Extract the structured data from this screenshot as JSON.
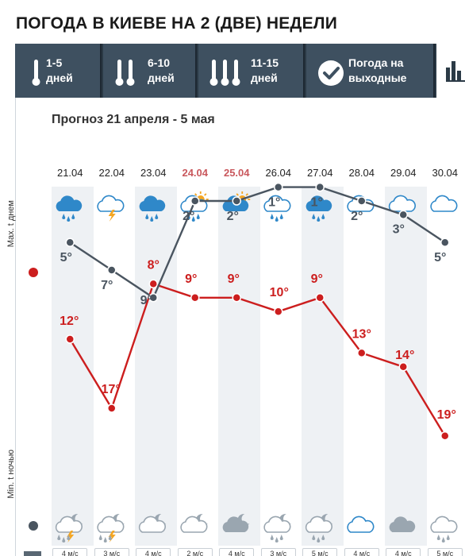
{
  "page_title": "ПОГОДА В КИЕВЕ НА 2 (ДВЕ) НЕДЕЛИ",
  "tabs": [
    {
      "id": "1-5",
      "line1": "1-5",
      "line2": "дней",
      "icon": "thermometer-1-icon",
      "active": false
    },
    {
      "id": "6-10",
      "line1": "6-10",
      "line2": "дней",
      "icon": "thermometer-2-icon",
      "active": false
    },
    {
      "id": "11-15",
      "line1": "11-15",
      "line2": "дней",
      "icon": "thermometer-3-icon",
      "active": false
    },
    {
      "id": "weekend",
      "line1": "Погода на",
      "line2": "выходные",
      "icon": "checkmark-circle-icon",
      "active": false
    },
    {
      "id": "chart",
      "line1": "",
      "line2": "",
      "icon": "bar-chart-icon",
      "active": true
    }
  ],
  "forecast_title": "Прогноз 21 апреля - 5 мая",
  "axis": {
    "max_label": "Max. t днем",
    "min_label": "Min. t ночью",
    "max_color": "#cc1e1e",
    "min_color": "#4a5560"
  },
  "chart_data": {
    "type": "line",
    "x": [
      "21.04",
      "22.04",
      "23.04",
      "24.04",
      "25.04",
      "26.04",
      "27.04",
      "28.04",
      "29.04",
      "30.04"
    ],
    "weekend": [
      false,
      false,
      false,
      true,
      true,
      false,
      false,
      false,
      false,
      false
    ],
    "series": [
      {
        "name": "Max. t днем",
        "values": [
          12,
          17,
          8,
          9,
          9,
          10,
          9,
          13,
          14,
          19
        ],
        "labels": [
          "12°",
          "17°",
          "8°",
          "9°",
          "9°",
          "10°",
          "9°",
          "13°",
          "14°",
          "19°"
        ],
        "color": "#cc1e1e"
      },
      {
        "name": "Min. t ночью",
        "values": [
          5,
          7,
          9,
          2,
          2,
          1,
          1,
          2,
          3,
          5
        ],
        "labels": [
          "5°",
          "7°",
          "9°",
          "2°",
          "2°",
          "1°",
          "1°",
          "2°",
          "3°",
          "5°"
        ],
        "color": "#4a5560"
      }
    ],
    "day_icons": [
      "rain-cloud-icon",
      "thunderstorm-icon",
      "rain-cloud-icon",
      "sun-cloud-rain-icon",
      "sun-cloud-icon",
      "cloud-rain-icon",
      "rain-cloud-icon",
      "cloud-icon",
      "cloud-icon",
      "cloud-icon"
    ],
    "night_icons": [
      "night-thunderstorm-icon",
      "night-thunderstorm-icon",
      "moon-cloud-icon",
      "moon-cloud-icon",
      "moon-cloud-dark-icon",
      "moon-cloud-rain-icon",
      "moon-cloud-rain-icon",
      "cloud-icon",
      "dark-cloud-icon",
      "cloud-rain-icon"
    ],
    "wind": [
      "4 м/с",
      "3 м/с",
      "4 м/с",
      "2 м/с",
      "4 м/с",
      "3 м/с",
      "5 м/с",
      "4 м/с",
      "4 м/с",
      "5 м/с"
    ]
  }
}
